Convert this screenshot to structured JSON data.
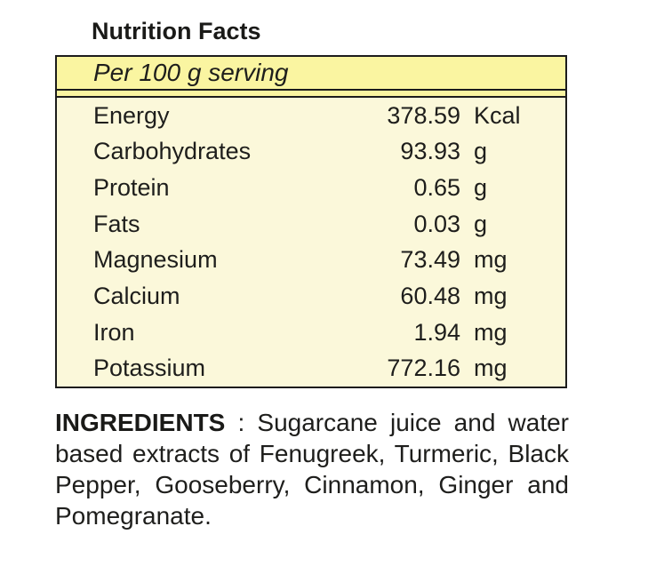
{
  "title": "Nutrition Facts",
  "table": {
    "header": "Per 100 g serving",
    "rows": [
      {
        "label": "Energy",
        "value": "378.59",
        "unit": "Kcal"
      },
      {
        "label": "Carbohydrates",
        "value": "93.93",
        "unit": "g"
      },
      {
        "label": "Protein",
        "value": "0.65",
        "unit": "g"
      },
      {
        "label": "Fats",
        "value": "0.03",
        "unit": "g"
      },
      {
        "label": "Magnesium",
        "value": "73.49",
        "unit": "mg"
      },
      {
        "label": "Calcium",
        "value": "60.48",
        "unit": "mg"
      },
      {
        "label": "Iron",
        "value": "1.94",
        "unit": "mg"
      },
      {
        "label": "Potassium",
        "value": "772.16",
        "unit": "mg"
      }
    ]
  },
  "ingredients": {
    "heading": "INGREDIENTS",
    "separator": " : ",
    "text": "Sugarcane juice and water based extracts of Fenugreek, Turmeric, Black Pepper, Gooseberry, Cinnamon, Ginger and Pomegranate."
  },
  "colors": {
    "header_bg": "#faf5a1",
    "body_bg": "#fbf8da",
    "border": "#1c1c1c",
    "text": "#1e1e1c"
  }
}
